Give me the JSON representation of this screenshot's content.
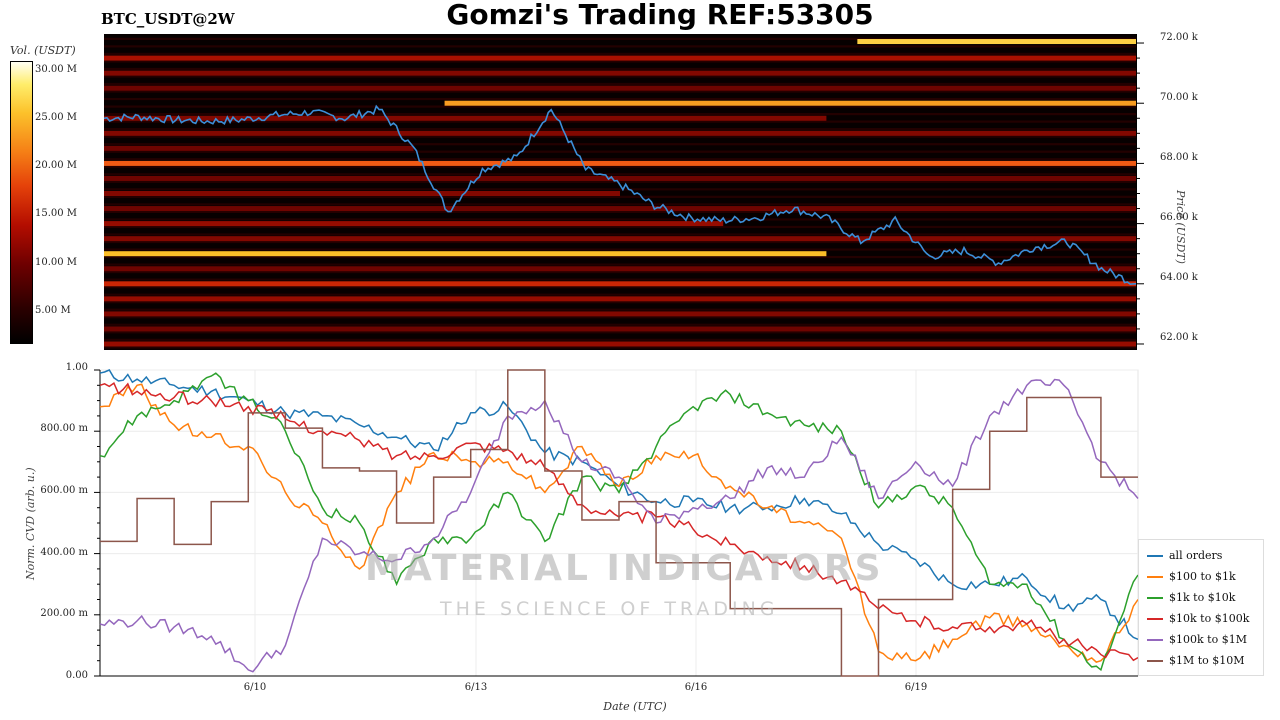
{
  "header": {
    "pair_label": "BTC_USDT@2W",
    "title": "Gomzi's Trading REF:53305"
  },
  "colorbar": {
    "title": "Vol. (USDT)",
    "ticks": [
      "30.00 M",
      "25.00 M",
      "20.00 M",
      "15.00 M",
      "10.00 M",
      "5.00 M"
    ]
  },
  "watermark": {
    "line1": "MATERIAL INDICATORS",
    "line2": "THE SCIENCE OF TRADING"
  },
  "chart_data": [
    {
      "type": "heatmap",
      "title": "BTC_USDT@2W",
      "ylabel": "Price (USDT)",
      "ylim": [
        61800,
        72300
      ],
      "yticks": [
        "62.00 k",
        "64.00 k",
        "66.00 k",
        "68.00 k",
        "70.00 k",
        "72.00 k"
      ],
      "colorbar_label": "Vol. (USDT)",
      "colorbar_range": [
        0,
        31000000
      ],
      "liquidity_bands": [
        {
          "price": 72050,
          "intensity": 0.9,
          "start": 0.73,
          "end": 1.0
        },
        {
          "price": 71500,
          "intensity": 0.45,
          "start": 0.0,
          "end": 1.0
        },
        {
          "price": 71000,
          "intensity": 0.35,
          "start": 0.0,
          "end": 1.0
        },
        {
          "price": 70500,
          "intensity": 0.3,
          "start": 0.0,
          "end": 1.0
        },
        {
          "price": 70000,
          "intensity": 0.8,
          "start": 0.33,
          "end": 1.0
        },
        {
          "price": 69500,
          "intensity": 0.35,
          "start": 0.0,
          "end": 0.7
        },
        {
          "price": 69000,
          "intensity": 0.35,
          "start": 0.0,
          "end": 1.0
        },
        {
          "price": 68500,
          "intensity": 0.3,
          "start": 0.0,
          "end": 0.3
        },
        {
          "price": 68000,
          "intensity": 0.7,
          "start": 0.0,
          "end": 1.0
        },
        {
          "price": 67500,
          "intensity": 0.3,
          "start": 0.0,
          "end": 1.0
        },
        {
          "price": 67000,
          "intensity": 0.35,
          "start": 0.0,
          "end": 0.5
        },
        {
          "price": 66500,
          "intensity": 0.3,
          "start": 0.0,
          "end": 1.0
        },
        {
          "price": 66000,
          "intensity": 0.4,
          "start": 0.0,
          "end": 0.6
        },
        {
          "price": 65500,
          "intensity": 0.35,
          "start": 0.0,
          "end": 1.0
        },
        {
          "price": 65000,
          "intensity": 0.85,
          "start": 0.0,
          "end": 0.7
        },
        {
          "price": 64500,
          "intensity": 0.3,
          "start": 0.0,
          "end": 1.0
        },
        {
          "price": 64000,
          "intensity": 0.55,
          "start": 0.0,
          "end": 1.0
        },
        {
          "price": 63500,
          "intensity": 0.4,
          "start": 0.0,
          "end": 1.0
        },
        {
          "price": 63000,
          "intensity": 0.35,
          "start": 0.0,
          "end": 1.0
        },
        {
          "price": 62500,
          "intensity": 0.3,
          "start": 0.0,
          "end": 1.0
        },
        {
          "price": 62000,
          "intensity": 0.4,
          "start": 0.0,
          "end": 1.0
        }
      ],
      "price_series": {
        "x": [
          "6/7 00:00",
          "6/7 12:00",
          "6/8 00:00",
          "6/8 12:00",
          "6/9 00:00",
          "6/9 12:00",
          "6/10 00:00",
          "6/10 12:00",
          "6/11 00:00",
          "6/11 12:00",
          "6/12 00:00",
          "6/12 12:00",
          "6/13 00:00",
          "6/13 12:00",
          "6/14 00:00",
          "6/14 12:00",
          "6/15 00:00",
          "6/15 12:00",
          "6/16 00:00",
          "6/16 12:00",
          "6/17 00:00",
          "6/17 12:00",
          "6/18 00:00",
          "6/18 12:00",
          "6/19 00:00",
          "6/19 12:00",
          "6/20 00:00",
          "6/20 12:00",
          "6/21 00:00",
          "6/21 12:00",
          "6/21 20:00"
        ],
        "y": [
          69500,
          69550,
          69450,
          69400,
          69450,
          69600,
          69700,
          69500,
          69800,
          68500,
          66400,
          67800,
          68200,
          69800,
          67800,
          67300,
          66600,
          66200,
          66100,
          66200,
          66500,
          66200,
          65400,
          66100,
          64900,
          65100,
          64700,
          65200,
          65400,
          64500,
          64000
        ]
      }
    },
    {
      "type": "line",
      "xlabel": "Date (UTC)",
      "ylabel": "Norm. CVD (arb. u.)",
      "ylim": [
        0,
        1
      ],
      "yticks": [
        "0.00",
        "200.00 m",
        "400.00 m",
        "600.00 m",
        "800.00 m",
        "1.00"
      ],
      "x_ticks": [
        "6/10",
        "6/13",
        "6/16",
        "6/19"
      ],
      "x": [
        "6/8 00:00",
        "6/8 12:00",
        "6/9 00:00",
        "6/9 12:00",
        "6/10 00:00",
        "6/10 12:00",
        "6/11 00:00",
        "6/11 12:00",
        "6/12 00:00",
        "6/12 12:00",
        "6/13 00:00",
        "6/13 12:00",
        "6/14 00:00",
        "6/14 12:00",
        "6/15 00:00",
        "6/15 12:00",
        "6/16 00:00",
        "6/16 12:00",
        "6/17 00:00",
        "6/17 12:00",
        "6/18 00:00",
        "6/18 12:00",
        "6/19 00:00",
        "6/19 12:00",
        "6/20 00:00",
        "6/20 12:00",
        "6/21 00:00",
        "6/21 12:00",
        "6/22 00:00"
      ],
      "series": [
        {
          "name": "all orders",
          "color": "#1f77b4",
          "values": [
            0.99,
            0.97,
            0.95,
            0.93,
            0.9,
            0.86,
            0.85,
            0.82,
            0.78,
            0.74,
            0.86,
            0.88,
            0.73,
            0.7,
            0.62,
            0.57,
            0.57,
            0.55,
            0.55,
            0.58,
            0.53,
            0.43,
            0.38,
            0.3,
            0.3,
            0.32,
            0.22,
            0.25,
            0.12
          ]
        },
        {
          "name": "$100 to $1k",
          "color": "#ff7f0e",
          "values": [
            0.88,
            0.95,
            0.82,
            0.78,
            0.75,
            0.6,
            0.5,
            0.35,
            0.6,
            0.73,
            0.7,
            0.7,
            0.6,
            0.75,
            0.62,
            0.72,
            0.72,
            0.62,
            0.55,
            0.5,
            0.45,
            0.08,
            0.05,
            0.12,
            0.19,
            0.17,
            0.1,
            0.05,
            0.25
          ]
        },
        {
          "name": "$1k to $10k",
          "color": "#2ca02c",
          "values": [
            0.72,
            0.85,
            0.9,
            0.98,
            0.9,
            0.8,
            0.55,
            0.5,
            0.3,
            0.45,
            0.45,
            0.6,
            0.44,
            0.65,
            0.6,
            0.75,
            0.88,
            0.92,
            0.86,
            0.82,
            0.8,
            0.55,
            0.62,
            0.55,
            0.3,
            0.3,
            0.12,
            0.02,
            0.33
          ]
        },
        {
          "name": "$10k to $100k",
          "color": "#d62728",
          "values": [
            0.95,
            0.93,
            0.91,
            0.9,
            0.88,
            0.84,
            0.8,
            0.77,
            0.72,
            0.72,
            0.76,
            0.74,
            0.68,
            0.56,
            0.52,
            0.52,
            0.48,
            0.43,
            0.39,
            0.36,
            0.31,
            0.22,
            0.18,
            0.16,
            0.16,
            0.17,
            0.12,
            0.07,
            0.06
          ]
        },
        {
          "name": "$100k to $1M",
          "color": "#9467bd",
          "values": [
            0.17,
            0.18,
            0.16,
            0.13,
            0.02,
            0.1,
            0.45,
            0.4,
            0.38,
            0.45,
            0.6,
            0.85,
            0.9,
            0.7,
            0.65,
            0.5,
            0.55,
            0.58,
            0.68,
            0.65,
            0.78,
            0.58,
            0.7,
            0.62,
            0.85,
            0.95,
            0.95,
            0.7,
            0.58
          ]
        },
        {
          "name": "$1M to $10M",
          "color": "#8c564b",
          "values": [
            0.44,
            0.58,
            0.43,
            0.57,
            0.86,
            0.81,
            0.68,
            0.67,
            0.5,
            0.65,
            0.74,
            1.0,
            0.67,
            0.51,
            0.57,
            0.37,
            0.37,
            0.22,
            0.22,
            0.22,
            0.0,
            0.25,
            0.25,
            0.61,
            0.8,
            0.91,
            0.91,
            0.65,
            0.65
          ]
        }
      ]
    }
  ]
}
